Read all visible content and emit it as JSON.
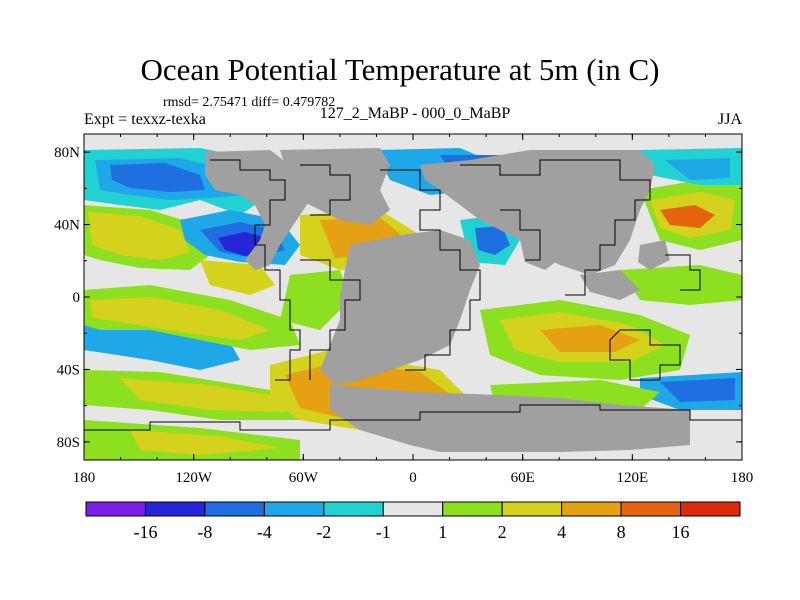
{
  "chart_data": {
    "type": "heatmap",
    "title": "Ocean Potential Temperature at 5m (in C)",
    "stats_line": "rmsd= 2.75471 diff= 0.479782",
    "experiment": "Expt = texxz-texka",
    "subtitle": "127_2_MaBP - 000_0_MaBP",
    "season": "JJA",
    "x_range": [
      -180,
      180
    ],
    "y_range": [
      -90,
      90
    ],
    "x_ticks": [
      {
        "value": -180,
        "label": "180"
      },
      {
        "value": -120,
        "label": "120W"
      },
      {
        "value": -60,
        "label": "60W"
      },
      {
        "value": 0,
        "label": "0"
      },
      {
        "value": 60,
        "label": "60E"
      },
      {
        "value": 120,
        "label": "120E"
      },
      {
        "value": 180,
        "label": "180"
      }
    ],
    "y_ticks": [
      {
        "value": 80,
        "label": "80N"
      },
      {
        "value": 40,
        "label": "40N"
      },
      {
        "value": 0,
        "label": "0"
      },
      {
        "value": -40,
        "label": "40S"
      },
      {
        "value": -80,
        "label": "80S"
      }
    ],
    "colorbar": {
      "colors": [
        "#7a1fe6",
        "#2626d9",
        "#1f6fe0",
        "#1fa8e8",
        "#22d2d2",
        "#e6e6e6",
        "#8de01f",
        "#d4d21c",
        "#e6a013",
        "#e6640f",
        "#dd2a0c"
      ],
      "labels": [
        "-16",
        "-8",
        "-4",
        "-2",
        "-1",
        "1",
        "2",
        "4",
        "8",
        "16"
      ]
    },
    "land_color": "#a0a0a0",
    "fields": [
      {
        "name": "north-pacific-cooling",
        "lon": [
          -175,
          -100
        ],
        "lat": [
          35,
          70
        ],
        "category": "-4"
      },
      {
        "name": "north-atlantic-strong-cooling",
        "lon": [
          -90,
          -50
        ],
        "lat": [
          25,
          45
        ],
        "category": "-8"
      },
      {
        "name": "north-atlantic-strong-cooling-core",
        "lon": [
          -75,
          -60
        ],
        "lat": [
          25,
          40
        ],
        "category": "-16"
      },
      {
        "name": "subtropical-north-pacific-warming",
        "lon": [
          -180,
          -120
        ],
        "lat": [
          10,
          35
        ],
        "category": "4"
      },
      {
        "name": "equatorial-pacific-warming",
        "lon": [
          -175,
          -120
        ],
        "lat": [
          -30,
          5
        ],
        "category": "4"
      },
      {
        "name": "south-atlantic-warming",
        "lon": [
          -70,
          10
        ],
        "lat": [
          -65,
          -40
        ],
        "category": "8"
      },
      {
        "name": "indian-ocean-warming",
        "lon": [
          15,
          80
        ],
        "lat": [
          -55,
          -25
        ],
        "category": "4"
      },
      {
        "name": "mediterranean-warming",
        "lon": [
          -35,
          0
        ],
        "lat": [
          25,
          45
        ],
        "category": "8"
      },
      {
        "name": "northwest-pacific-warming",
        "lon": [
          130,
          165
        ],
        "lat": [
          30,
          45
        ],
        "category": "16"
      },
      {
        "name": "south-pacific-cooling",
        "lon": [
          130,
          175
        ],
        "lat": [
          -50,
          -35
        ],
        "category": "-4"
      }
    ]
  }
}
